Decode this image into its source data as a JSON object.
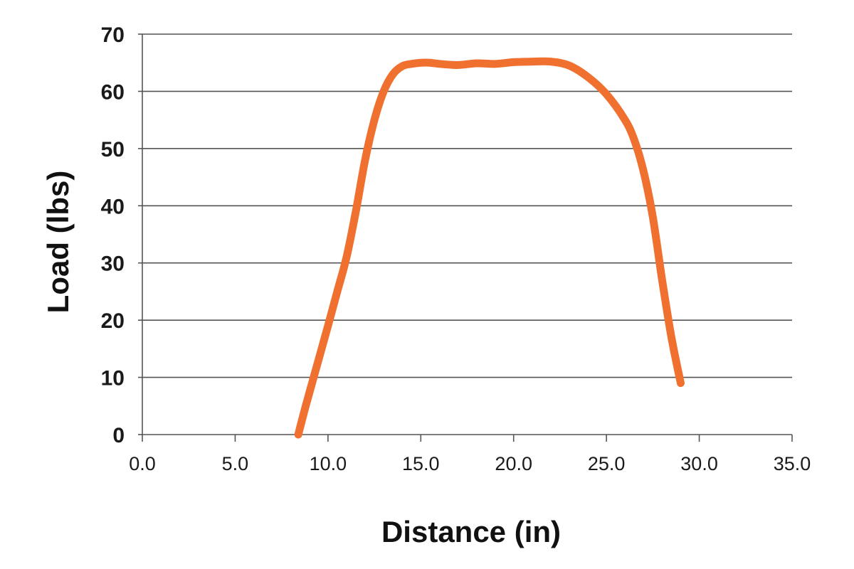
{
  "chart_data": {
    "type": "line",
    "title": "",
    "xlabel": "Distance (in)",
    "ylabel": "Load (lbs)",
    "xlim": [
      0,
      35
    ],
    "ylim": [
      0,
      70
    ],
    "xticks": [
      0,
      5,
      10,
      15,
      20,
      25,
      30,
      35
    ],
    "xtick_labels": [
      "0.0",
      "5.0",
      "10.0",
      "15.0",
      "20.0",
      "25.0",
      "30.0",
      "35.0"
    ],
    "yticks": [
      0,
      10,
      20,
      30,
      40,
      50,
      60,
      70
    ],
    "ytick_labels": [
      "0",
      "10",
      "20",
      "30",
      "40",
      "50",
      "60",
      "70"
    ],
    "grid": "horizontal",
    "legend": "none",
    "series": [
      {
        "color": "#f07030",
        "x": [
          8.4,
          8.8,
          9.4,
          10.0,
          10.5,
          11.0,
          11.5,
          12.0,
          12.5,
          13.0,
          13.5,
          14.0,
          14.5,
          15.0,
          15.5,
          16.0,
          17.0,
          18.0,
          19.0,
          20.0,
          21.0,
          22.0,
          23.0,
          24.0,
          25.0,
          26.0,
          26.5,
          27.0,
          27.5,
          28.0,
          28.5,
          29.0
        ],
        "y": [
          0,
          5,
          12,
          19,
          25,
          31,
          39,
          48,
          55,
          60,
          63,
          64.4,
          64.8,
          65,
          65,
          64.8,
          64.6,
          64.9,
          64.8,
          65.1,
          65.2,
          65.2,
          64.5,
          62.5,
          59.5,
          55,
          51.5,
          46,
          38,
          27,
          17,
          9
        ]
      }
    ]
  }
}
